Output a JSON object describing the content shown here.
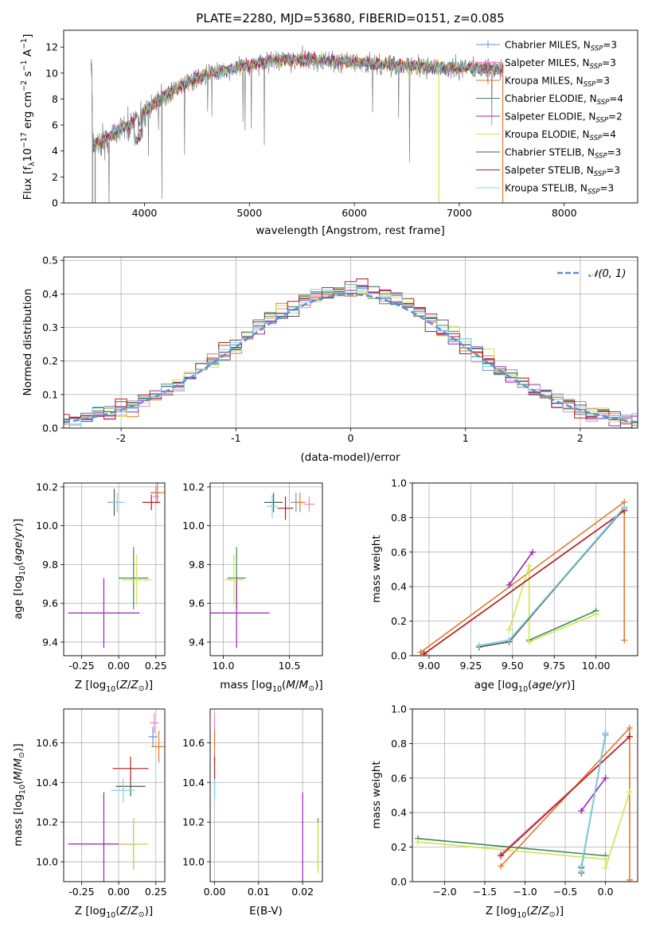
{
  "figure": {
    "title": "PLATE=2280, MJD=53680, FIBERID=0151, z=0.085"
  },
  "chart_data": [
    {
      "id": "spectrum",
      "type": "line",
      "xlabel": "wavelength [Angstrom, rest frame]",
      "ylabel": "Flux [f_λ 10^-17 erg cm^-2 s^-1 A^-1]",
      "xlim": [
        3230,
        8700
      ],
      "ylim": [
        0,
        13.3
      ],
      "xticks": [
        4000,
        5000,
        6000,
        7000,
        8000
      ],
      "yticks": [
        0,
        2,
        4,
        6,
        8,
        10,
        12
      ],
      "grid": false,
      "legend_position": "upper-right",
      "data_color": "#808080",
      "continuum": {
        "x": [
          3500,
          3550,
          3650,
          3750,
          3850,
          3950,
          4000,
          4100,
          4200,
          4300,
          4400,
          4500,
          4600,
          4700,
          4800,
          4900,
          5000,
          5100,
          5200,
          5300,
          5400,
          5500,
          5600,
          5700,
          5800,
          5900,
          6000,
          6100,
          6200,
          6300,
          6400,
          6500,
          6600,
          6700,
          6800,
          6900,
          7000,
          7100,
          7200,
          7300,
          7400
        ],
        "y": [
          4.3,
          4.6,
          5.0,
          5.5,
          6.0,
          6.5,
          7.0,
          7.7,
          8.3,
          8.8,
          9.2,
          9.6,
          9.9,
          10.1,
          10.3,
          10.5,
          10.6,
          10.8,
          10.9,
          11.0,
          11.0,
          11.0,
          11.0,
          11.0,
          10.9,
          10.9,
          10.8,
          10.8,
          10.7,
          10.7,
          10.6,
          10.6,
          10.5,
          10.5,
          10.5,
          10.4,
          10.4,
          10.4,
          10.3,
          10.3,
          10.3
        ]
      },
      "series": [
        {
          "name": "Chabrier MILES, N_SSP=3",
          "color": "#6f8fd9"
        },
        {
          "name": "Salpeter MILES, N_SSP=3",
          "color": "#e886c6"
        },
        {
          "name": "Kroupa MILES, N_SSP=3",
          "color": "#e0792c"
        },
        {
          "name": "Chabrier ELODIE, N_SSP=4",
          "color": "#3c8a5b"
        },
        {
          "name": "Salpeter ELODIE, N_SSP=2",
          "color": "#9b24b4"
        },
        {
          "name": "Kroupa ELODIE, N_SSP=4",
          "color": "#d0e64a"
        },
        {
          "name": "Chabrier STELIB, N_SSP=3",
          "color": "#555555"
        },
        {
          "name": "Salpeter STELIB, N_SSP=3",
          "color": "#b51c1c"
        },
        {
          "name": "Kroupa STELIB, N_SSP=3",
          "color": "#7fd6e0"
        }
      ]
    },
    {
      "id": "residuals",
      "type": "histogram",
      "xlabel": "(data-model)/error",
      "ylabel": "Normed distribution",
      "xlim": [
        -2.5,
        2.5
      ],
      "ylim": [
        0,
        0.51
      ],
      "xticks": [
        -2,
        -1,
        0,
        1,
        2
      ],
      "yticks": [
        0.0,
        0.1,
        0.2,
        0.3,
        0.4,
        0.5
      ],
      "grid": true,
      "legend_position": "upper-right",
      "gaussian_label": "𝒩(0, 1)",
      "gaussian_color": "#5b8fd6",
      "bin_width": 0.1
    },
    {
      "id": "age_vs_Z",
      "type": "errorbar",
      "xlabel": "Z [log10(Z/Z⊙)]",
      "ylabel": "age  [log10(age/yr)]",
      "xlim": [
        -0.37,
        0.31
      ],
      "ylim": [
        9.33,
        10.22
      ],
      "xticks": [
        -0.25,
        0.0,
        0.25
      ],
      "yticks": [
        9.4,
        9.6,
        9.8,
        10.0,
        10.2
      ],
      "grid": true,
      "points": [
        {
          "x": 0.25,
          "y": 10.17,
          "xerr": 0.03,
          "yerr": 0.03,
          "series": 0
        },
        {
          "x": 0.25,
          "y": 10.15,
          "xerr": 0.02,
          "yerr": 0.04,
          "series": 1
        },
        {
          "x": 0.26,
          "y": 10.17,
          "xerr": 0.05,
          "yerr": 0.05,
          "series": 2
        },
        {
          "x": 0.1,
          "y": 9.73,
          "xerr": 0.1,
          "yerr": 0.16,
          "series": 3
        },
        {
          "x": -0.1,
          "y": 9.55,
          "xerr": 0.24,
          "yerr": 0.18,
          "series": 4
        },
        {
          "x": 0.12,
          "y": 9.72,
          "xerr": 0.1,
          "yerr": 0.13,
          "series": 5
        },
        {
          "x": -0.03,
          "y": 10.12,
          "xerr": 0.04,
          "yerr": 0.07,
          "series": 6
        },
        {
          "x": 0.22,
          "y": 10.12,
          "xerr": 0.06,
          "yerr": 0.04,
          "series": 7
        },
        {
          "x": -0.01,
          "y": 10.12,
          "xerr": 0.05,
          "yerr": 0.05,
          "series": 8
        }
      ]
    },
    {
      "id": "age_vs_mass",
      "type": "errorbar",
      "xlabel": "mass [log10(M/M⊙)]",
      "ylabel": "",
      "xlim": [
        9.9,
        10.75
      ],
      "ylim": [
        9.33,
        10.22
      ],
      "xticks": [
        10.0,
        10.5
      ],
      "yticks": [
        9.4,
        9.6,
        9.8,
        10.0,
        10.2
      ],
      "grid": true,
      "points": [
        {
          "x": 10.55,
          "y": 10.12,
          "xerr": 0.04,
          "yerr": 0.05,
          "series": 0
        },
        {
          "x": 10.65,
          "y": 10.11,
          "xerr": 0.04,
          "yerr": 0.04,
          "series": 1
        },
        {
          "x": 10.58,
          "y": 10.12,
          "xerr": 0.04,
          "yerr": 0.05,
          "series": 2
        },
        {
          "x": 10.1,
          "y": 9.73,
          "xerr": 0.07,
          "yerr": 0.16,
          "series": 3
        },
        {
          "x": 10.1,
          "y": 9.55,
          "xerr": 0.25,
          "yerr": 0.18,
          "series": 4
        },
        {
          "x": 10.08,
          "y": 9.72,
          "xerr": 0.07,
          "yerr": 0.13,
          "series": 5
        },
        {
          "x": 10.38,
          "y": 10.12,
          "xerr": 0.07,
          "yerr": 0.05,
          "series": 6
        },
        {
          "x": 10.47,
          "y": 10.09,
          "xerr": 0.06,
          "yerr": 0.06,
          "series": 7
        },
        {
          "x": 10.37,
          "y": 10.1,
          "xerr": 0.04,
          "yerr": 0.06,
          "series": 8
        }
      ]
    },
    {
      "id": "weight_vs_age",
      "type": "line",
      "xlabel": "age  [log10(age/yr)]",
      "ylabel": "mass weight",
      "xlim": [
        8.9,
        10.25
      ],
      "ylim": [
        0.0,
        1.0
      ],
      "xticks": [
        9.0,
        9.25,
        9.5,
        9.75,
        10.0
      ],
      "yticks": [
        0.0,
        0.2,
        0.4,
        0.6,
        0.8,
        1.0
      ],
      "grid": true,
      "series": [
        {
          "x": [
            9.3,
            9.48,
            10.17
          ],
          "y": [
            0.06,
            0.09,
            0.85
          ],
          "series": 0
        },
        {
          "x": [
            8.97,
            10.17
          ],
          "y": [
            0.01,
            0.84
          ],
          "series": 1
        },
        {
          "x": [
            8.95,
            10.17,
            10.17
          ],
          "y": [
            0.02,
            0.89,
            0.09
          ],
          "series": 2
        },
        {
          "x": [
            9.6,
            10.0
          ],
          "y": [
            0.09,
            0.26
          ],
          "series": 3
        },
        {
          "x": [
            9.48,
            9.62
          ],
          "y": [
            0.41,
            0.6
          ],
          "series": 4
        },
        {
          "x": [
            9.48,
            9.6,
            9.6,
            10.0
          ],
          "y": [
            0.15,
            0.52,
            0.08,
            0.24
          ],
          "series": 5
        },
        {
          "x": [
            9.3,
            9.48,
            10.17
          ],
          "y": [
            0.05,
            0.08,
            0.86
          ],
          "series": 6
        },
        {
          "x": [
            8.97,
            10.17
          ],
          "y": [
            0.01,
            0.84
          ],
          "series": 7
        },
        {
          "x": [
            9.3,
            9.48,
            10.17
          ],
          "y": [
            0.06,
            0.09,
            0.86
          ],
          "series": 8
        }
      ]
    },
    {
      "id": "mass_vs_Z",
      "type": "errorbar",
      "xlabel": "Z [log10(Z/Z⊙)]",
      "ylabel": "mass [log10(M/M⊙)]",
      "xlim": [
        -0.37,
        0.31
      ],
      "ylim": [
        9.9,
        10.77
      ],
      "xticks": [
        -0.25,
        0.0,
        0.25
      ],
      "yticks": [
        10.0,
        10.2,
        10.4,
        10.6
      ],
      "grid": true,
      "points": [
        {
          "x": 0.23,
          "y": 10.63,
          "xerr": 0.03,
          "yerr": 0.05,
          "series": 0
        },
        {
          "x": 0.24,
          "y": 10.7,
          "xerr": 0.03,
          "yerr": 0.05,
          "series": 1
        },
        {
          "x": 0.27,
          "y": 10.58,
          "xerr": 0.05,
          "yerr": 0.08,
          "series": 2
        },
        {
          "x": 0.1,
          "y": 10.09,
          "xerr": 0.1,
          "yerr": 0.13,
          "series": 3
        },
        {
          "x": -0.1,
          "y": 10.09,
          "xerr": 0.24,
          "yerr": 0.26,
          "series": 4
        },
        {
          "x": 0.1,
          "y": 10.09,
          "xerr": 0.1,
          "yerr": 0.13,
          "series": 5
        },
        {
          "x": 0.08,
          "y": 10.38,
          "xerr": 0.1,
          "yerr": 0.05,
          "series": 6
        },
        {
          "x": 0.08,
          "y": 10.47,
          "xerr": 0.12,
          "yerr": 0.06,
          "series": 7
        },
        {
          "x": 0.03,
          "y": 10.36,
          "xerr": 0.08,
          "yerr": 0.06,
          "series": 8
        }
      ]
    },
    {
      "id": "mass_vs_ebv",
      "type": "errorbar",
      "xlabel": "E(B-V)",
      "ylabel": "",
      "xlim": [
        -0.001,
        0.0245
      ],
      "ylim": [
        9.9,
        10.77
      ],
      "xticks": [
        0.0,
        0.01,
        0.02
      ],
      "xtick_labels": [
        "0.00",
        "0.01",
        "0.02"
      ],
      "yticks": [
        10.0,
        10.2,
        10.4,
        10.6
      ],
      "grid": true,
      "points": [
        {
          "x": 0.0,
          "y": 10.63,
          "xerr": 0,
          "yerr": 0.05,
          "series": 0
        },
        {
          "x": 0.0,
          "y": 10.7,
          "xerr": 0,
          "yerr": 0.05,
          "series": 1
        },
        {
          "x": 0.0,
          "y": 10.58,
          "xerr": 0,
          "yerr": 0.08,
          "series": 2
        },
        {
          "x": 0.0235,
          "y": 10.09,
          "xerr": 0,
          "yerr": 0.13,
          "series": 3
        },
        {
          "x": 0.02,
          "y": 10.09,
          "xerr": 0,
          "yerr": 0.26,
          "series": 4
        },
        {
          "x": 0.0235,
          "y": 10.07,
          "xerr": 0,
          "yerr": 0.13,
          "series": 5
        },
        {
          "x": 0.0,
          "y": 10.38,
          "xerr": 0,
          "yerr": 0.05,
          "series": 6
        },
        {
          "x": 0.0,
          "y": 10.47,
          "xerr": 0,
          "yerr": 0.06,
          "series": 7
        },
        {
          "x": 0.0,
          "y": 10.36,
          "xerr": 0,
          "yerr": 0.06,
          "series": 8
        }
      ]
    },
    {
      "id": "weight_vs_Z",
      "type": "line",
      "xlabel": "Z [log10(Z/Z⊙)]",
      "ylabel": "mass weight",
      "xlim": [
        -2.4,
        0.4
      ],
      "ylim": [
        0.0,
        1.0
      ],
      "xticks": [
        -2.0,
        -1.5,
        -1.0,
        -0.5,
        0.0
      ],
      "yticks": [
        0.0,
        0.2,
        0.4,
        0.6,
        0.8,
        1.0
      ],
      "grid": true,
      "series": [
        {
          "x": [
            -0.3,
            -0.3,
            0.0
          ],
          "y": [
            0.06,
            0.09,
            0.85
          ],
          "series": 0
        },
        {
          "x": [
            -1.3,
            0.3
          ],
          "y": [
            0.16,
            0.84
          ],
          "series": 1
        },
        {
          "x": [
            -1.3,
            0.3,
            0.3
          ],
          "y": [
            0.09,
            0.89,
            0.01
          ],
          "series": 2
        },
        {
          "x": [
            -2.33,
            0.0
          ],
          "y": [
            0.25,
            0.15
          ],
          "series": 3
        },
        {
          "x": [
            -0.3,
            0.0
          ],
          "y": [
            0.41,
            0.6
          ],
          "series": 4
        },
        {
          "x": [
            -2.33,
            0.0,
            0.0,
            0.3
          ],
          "y": [
            0.23,
            0.13,
            0.08,
            0.52
          ],
          "series": 5
        },
        {
          "x": [
            -0.3,
            -0.3,
            0.0
          ],
          "y": [
            0.05,
            0.08,
            0.86
          ],
          "series": 6
        },
        {
          "x": [
            -1.3,
            0.3
          ],
          "y": [
            0.15,
            0.84
          ],
          "series": 7
        },
        {
          "x": [
            -0.3,
            -0.3,
            0.0
          ],
          "y": [
            0.06,
            0.09,
            0.86
          ],
          "series": 8
        }
      ]
    }
  ]
}
